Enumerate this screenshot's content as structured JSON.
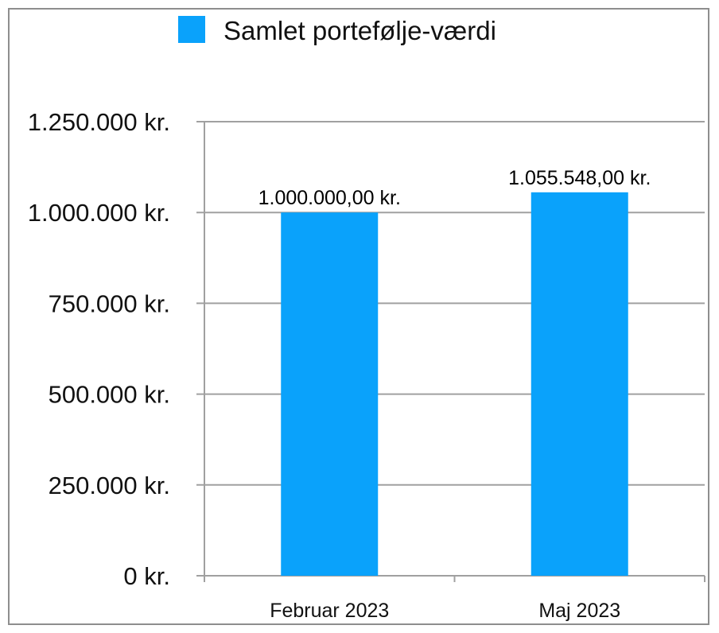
{
  "chart_data": {
    "type": "bar",
    "categories": [
      "Februar 2023",
      "Maj 2023"
    ],
    "series": [
      {
        "name": "Samlet portefølje-værdi",
        "values": [
          1000000,
          1055548
        ],
        "color": "#0aa2fb"
      }
    ],
    "data_labels": [
      "1.000.000,00 kr.",
      "1.055.548,00 kr."
    ],
    "ylim": [
      0,
      1250000
    ],
    "yticks": [
      0,
      250000,
      500000,
      750000,
      1000000,
      1250000
    ],
    "ytick_labels": [
      "0 kr.",
      "250.000 kr.",
      "500.000 kr.",
      "750.000 kr.",
      "1.000.000 kr.",
      "1.250.000 kr."
    ],
    "grid": true,
    "legend_position": "top-center",
    "colors": {
      "bar": "#0aa2fb",
      "grid": "#a0a0a0",
      "frame": "#8e8e8e"
    }
  }
}
